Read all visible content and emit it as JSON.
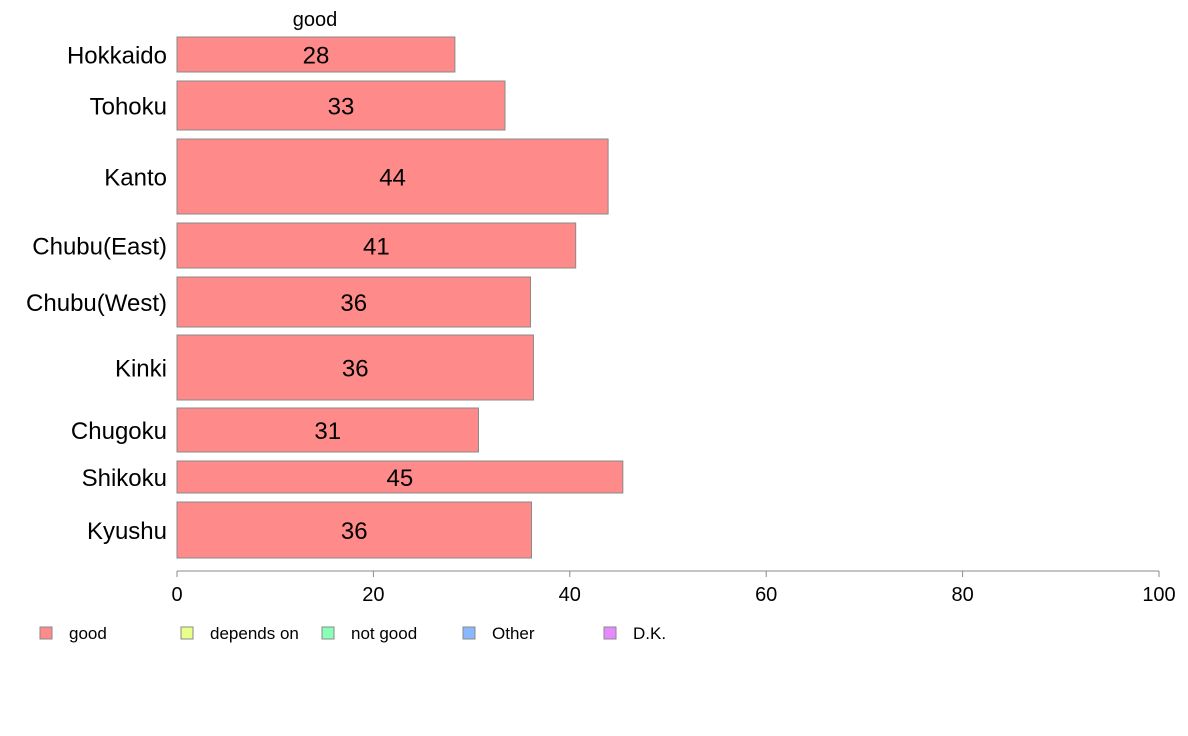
{
  "chart_data": {
    "type": "bar",
    "orientation": "horizontal",
    "stacked": true,
    "categories": [
      "Hokkaido",
      "Tohoku",
      "Kanto",
      "Chubu(East)",
      "Chubu(West)",
      "Kinki",
      "Chugoku",
      "Shikoku",
      "Kyushu"
    ],
    "column_title": "good",
    "series": [
      {
        "name": "good",
        "color": "#ff8a8a",
        "values": [
          28.3,
          33.4,
          43.9,
          40.6,
          36.0,
          36.3,
          30.7,
          45.4,
          36.1
        ],
        "labels": [
          "28",
          "33",
          "44",
          "41",
          "36",
          "36",
          "31",
          "45",
          "36"
        ]
      }
    ],
    "legend": {
      "placement": "bottom-left",
      "items": [
        {
          "name": "good",
          "color": "#ff8a8a"
        },
        {
          "name": "depends on",
          "color": "#e8ff8a"
        },
        {
          "name": "not good",
          "color": "#8affb8"
        },
        {
          "name": "Other",
          "color": "#8ab8ff"
        },
        {
          "name": "D.K.",
          "color": "#e88aff"
        }
      ]
    },
    "xlim": [
      0,
      100
    ],
    "xticks": [
      0,
      20,
      40,
      60,
      80,
      100
    ],
    "grid": false
  }
}
